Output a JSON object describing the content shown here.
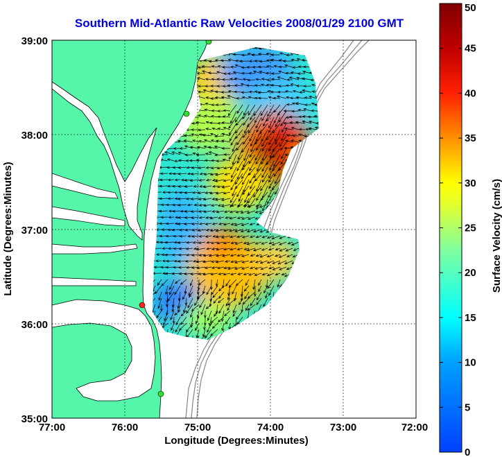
{
  "title": "Southern Mid-Atlantic Raw Velocities 2008/01/29 2100 GMT",
  "axes": {
    "xlabel": "Longitude (Degrees:Minutes)",
    "ylabel": "Latitude (Degrees:Minutes)",
    "x_ticks": [
      "77:00",
      "76:00",
      "75:00",
      "74:00",
      "73:00",
      "72:00"
    ],
    "y_ticks": [
      "39:00",
      "38:00",
      "37:00",
      "36:00",
      "35:00"
    ],
    "x_range_deg_west": [
      77,
      72
    ],
    "y_range_deg_north": [
      35,
      39
    ],
    "grid": "dotted"
  },
  "colorbar": {
    "label": "Surface Velocity (cm/s)",
    "ticks": [
      "50",
      "45",
      "40",
      "35",
      "30",
      "25",
      "20",
      "15",
      "10",
      "5",
      "0"
    ],
    "range": [
      0,
      50
    ],
    "colormap": "jet"
  },
  "colors": {
    "land": "#55f5aa",
    "water": "#ffffff",
    "title": "#0000dd",
    "station_green": "#33dd33",
    "station_red": "#ff2222",
    "bathymetry": "#8c8c8c"
  },
  "chart_data": {
    "type": "heatmap",
    "title": "Southern Mid-Atlantic Raw Velocities 2008/01/29 2100 GMT",
    "xlabel": "Longitude (Degrees:Minutes)",
    "ylabel": "Latitude (Degrees:Minutes)",
    "value_label": "Surface Velocity (cm/s)",
    "value_range": [
      0,
      50
    ],
    "velocity_hotspots": [
      {
        "lon": -73.85,
        "lat": 37.75,
        "speed": 44
      },
      {
        "lon": -73.75,
        "lat": 37.95,
        "speed": 38
      },
      {
        "lon": -74.55,
        "lat": 36.85,
        "speed": 33
      },
      {
        "lon": -74.8,
        "lat": 38.55,
        "speed": 28
      },
      {
        "lon": -75.3,
        "lat": 36.15,
        "speed": 7
      },
      {
        "lon": -74.3,
        "lat": 38.75,
        "speed": 10
      }
    ],
    "stations": [
      {
        "lon": -74.9,
        "lat": 39.0,
        "color": "green"
      },
      {
        "lon": -75.15,
        "lat": 38.22,
        "color": "green"
      },
      {
        "lon": -75.73,
        "lat": 36.18,
        "color": "red"
      },
      {
        "lon": -75.5,
        "lat": 35.25,
        "color": "green"
      }
    ]
  }
}
